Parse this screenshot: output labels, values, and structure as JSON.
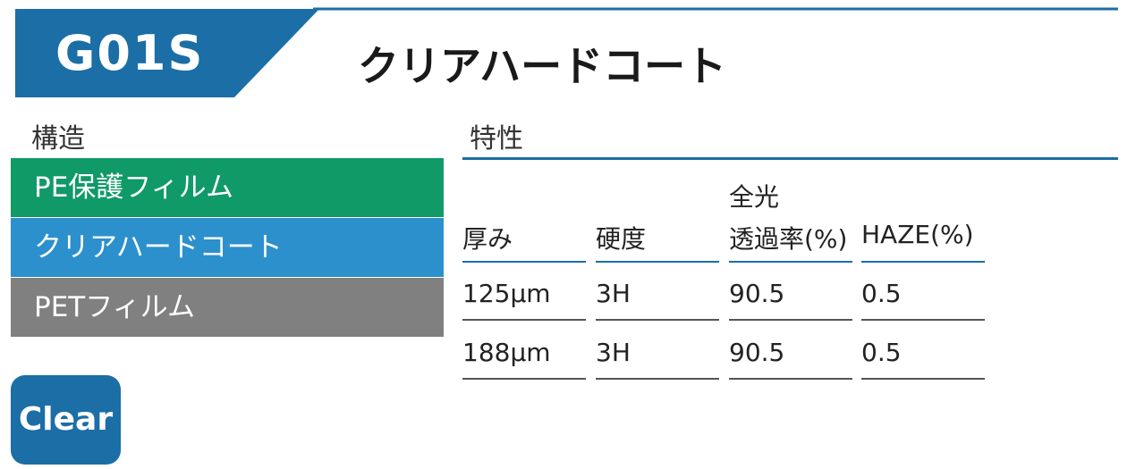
{
  "header": {
    "code": "G01S",
    "title": "クリアハードコート"
  },
  "structure": {
    "heading": "構造",
    "layers": [
      "PE保護フィルム",
      "クリアハードコート",
      "PETフィルム"
    ]
  },
  "properties": {
    "heading": "特性",
    "headers": [
      [
        "厚み"
      ],
      [
        "硬度"
      ],
      [
        "全光",
        "透過率(%)"
      ],
      [
        "HAZE(%)"
      ]
    ],
    "rows": [
      [
        "125µm",
        "3H",
        "90.5",
        "0.5"
      ],
      [
        "188µm",
        "3H",
        "90.5",
        "0.5"
      ]
    ]
  },
  "badge": "Clear"
}
